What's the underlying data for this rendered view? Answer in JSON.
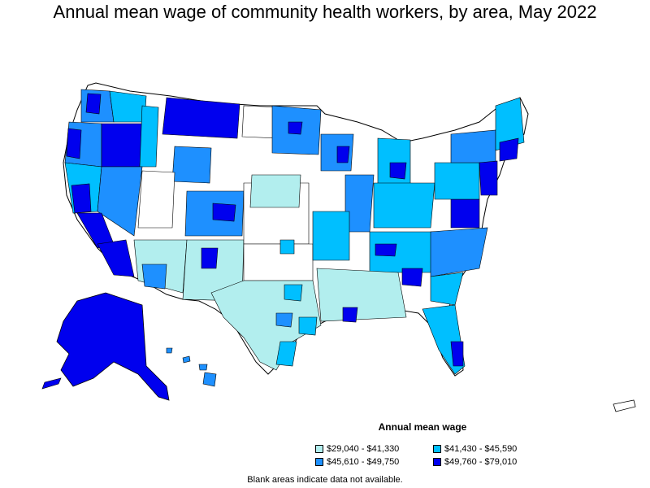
{
  "title": "Annual mean wage of community health workers, by area, May 2022",
  "legend": {
    "title": "Annual mean wage",
    "items": [
      {
        "label": "$29,040 - $41,330",
        "color": "#b2eeee"
      },
      {
        "label": "$41,430 - $45,590",
        "color": "#00bfff"
      },
      {
        "label": "$45,610 - $49,750",
        "color": "#1e90ff"
      },
      {
        "label": "$49,760 - $79,010",
        "color": "#0000ee"
      }
    ]
  },
  "footnote": "Blank areas indicate data not available.",
  "colors": {
    "tier1": "#b2eeee",
    "tier2": "#00bfff",
    "tier3": "#1e90ff",
    "tier4": "#0000ee",
    "blank": "#ffffff",
    "border": "#000000"
  }
}
